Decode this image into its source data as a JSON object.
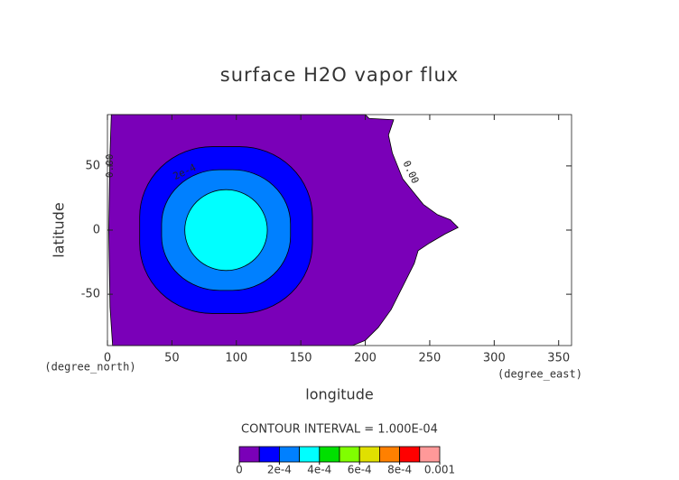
{
  "chart_data": {
    "type": "contour",
    "title": "surface H2O vapor flux",
    "x_label": "longitude",
    "y_label": "latitude",
    "x_unit": "(degree_east)",
    "y_unit": "(degree_north)",
    "subtitle": "CONTOUR INTERVAL = 1.000E-04",
    "xlim": [
      0,
      360
    ],
    "ylim": [
      -90,
      90
    ],
    "xticks": [
      0,
      50,
      100,
      150,
      200,
      250,
      300,
      350
    ],
    "yticks": [
      -50,
      0,
      50
    ],
    "levels": [
      0,
      0.0001,
      0.0002,
      0.0003,
      0.0004,
      0.0005,
      0.0006,
      0.0007,
      0.0008,
      0.0009,
      0.001
    ],
    "level_colors": [
      "#7a00b8",
      "#0000ff",
      "#0080ff",
      "#00ffff",
      "#00e000",
      "#80ff00",
      "#e0e000",
      "#ff8000",
      "#ff0000",
      "#ff9999"
    ],
    "colorbar_ticks": [
      0,
      {
        "value": 0.0002,
        "label": "2e-4"
      },
      {
        "value": 0.0004,
        "label": "4e-4"
      },
      {
        "value": 0.0006,
        "label": "6e-4"
      },
      {
        "value": 0.0008,
        "label": "8e-4"
      },
      0.001
    ],
    "contour_labels": [
      {
        "value": 0,
        "label": "0.00"
      },
      {
        "value": 0.0002,
        "label": "2e-4"
      },
      {
        "value": 0,
        "label": "0.00"
      }
    ]
  }
}
